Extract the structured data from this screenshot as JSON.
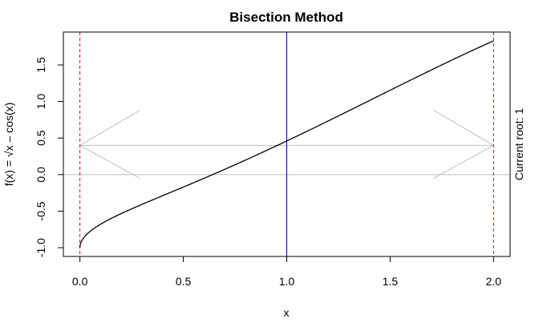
{
  "chart_data": {
    "type": "line",
    "title": "Bisection Method",
    "xlabel": "x",
    "ylabel": "f(x) = √x – cos(x)",
    "xlim": [
      -0.08,
      2.08
    ],
    "ylim": [
      -1.12,
      1.95
    ],
    "x_ticks": [
      0.0,
      0.5,
      1.0,
      1.5,
      2.0
    ],
    "x_tick_labels": [
      "0.0",
      "0.5",
      "1.0",
      "1.5",
      "2.0"
    ],
    "y_ticks": [
      -1.0,
      -0.5,
      0.0,
      0.5,
      1.0,
      1.5
    ],
    "y_tick_labels": [
      "-1.0",
      "-0.5",
      "0.0",
      "0.5",
      "1.0",
      "1.5"
    ],
    "function": "sqrt(x) - cos(x)",
    "x_range": [
      0,
      2
    ],
    "interval_bounds": [
      0,
      2
    ],
    "midpoint": 1.0,
    "horizontal_reference_y": 0.4,
    "zero_line_y": 0,
    "arrow_left": {
      "tip": [
        0,
        0.4
      ],
      "ends": [
        [
          0.29,
          0.88
        ],
        [
          0.29,
          -0.05
        ]
      ]
    },
    "arrow_right": {
      "tip": [
        2,
        0.4
      ],
      "ends": [
        [
          1.71,
          0.88
        ],
        [
          1.71,
          -0.05
        ]
      ]
    },
    "right_margin_text": "Current root: 1",
    "colors": {
      "curve": "#000000",
      "bounds": "#ff0000",
      "midpoint": "#000080",
      "reference": "#bebebe"
    }
  }
}
